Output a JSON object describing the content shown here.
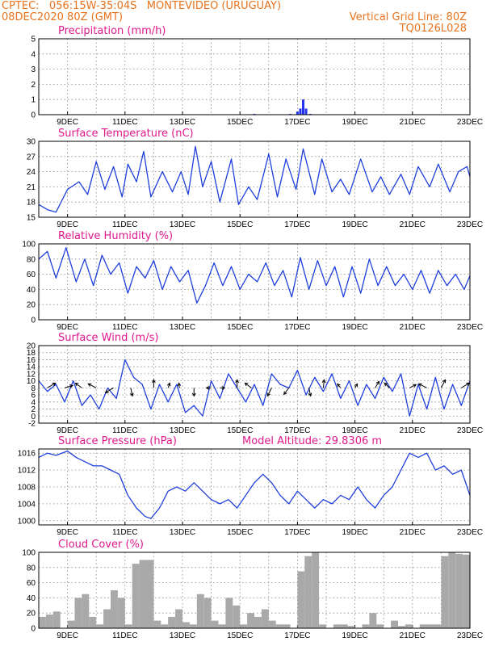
{
  "header": {
    "line1_left": "CPTEC:   056:15W-35:04S   MONTEVIDEO (URUGUAY)",
    "line2_left": "08DEC2020 80Z (GMT)",
    "line2_right": "Vertical Grid Line: 80Z",
    "line3_right": "TQ0126L028"
  },
  "colors": {
    "header": "#e8731e",
    "title": "#e0198c",
    "line": "#1f3fdc",
    "bar": "#2233ee",
    "cloud": "#a9a9a9"
  },
  "chart_data": [
    {
      "id": "precip",
      "type": "bar",
      "title": "Precipitation (mm/h)",
      "ylim": [
        0,
        5
      ],
      "yticks": [
        0,
        1,
        2,
        3,
        4,
        5
      ],
      "xticks": [
        "9DEC",
        "11DEC",
        "13DEC",
        "15DEC",
        "17DEC",
        "19DEC",
        "21DEC",
        "23DEC"
      ],
      "x": [
        15.5,
        16.75,
        17.0,
        17.1,
        17.2,
        17.3,
        17.45
      ],
      "values": [
        0.05,
        0.05,
        0.2,
        0.4,
        1.0,
        0.4,
        0.05
      ]
    },
    {
      "id": "temperature",
      "type": "line",
      "title": "Surface Temperature (nC)",
      "ylim": [
        15,
        30
      ],
      "yticks": [
        15,
        18,
        21,
        24,
        27,
        30
      ],
      "xticks": [
        "9DEC",
        "11DEC",
        "13DEC",
        "15DEC",
        "17DEC",
        "19DEC",
        "21DEC",
        "23DEC"
      ],
      "x": [
        8.0,
        8.3,
        8.6,
        9.0,
        9.4,
        9.7,
        10.0,
        10.3,
        10.6,
        10.9,
        11.1,
        11.4,
        11.65,
        11.9,
        12.3,
        12.65,
        12.95,
        13.2,
        13.45,
        13.7,
        14.0,
        14.3,
        14.7,
        14.95,
        15.3,
        15.6,
        16.0,
        16.3,
        16.6,
        16.95,
        17.2,
        17.6,
        17.85,
        18.2,
        18.5,
        18.8,
        19.2,
        19.6,
        19.9,
        20.2,
        20.6,
        20.9,
        21.2,
        21.6,
        21.9,
        22.3,
        22.6,
        22.9,
        23.0
      ],
      "values": [
        17.5,
        16.5,
        16.0,
        20.5,
        22.0,
        19.5,
        26.0,
        20.5,
        25.0,
        19.0,
        25.5,
        22.0,
        28.0,
        19.0,
        24.0,
        20.0,
        24.0,
        19.5,
        29.0,
        21.0,
        26.0,
        18.0,
        26.5,
        17.5,
        21.0,
        18.5,
        27.5,
        19.0,
        26.5,
        20.5,
        28.5,
        19.5,
        26.5,
        20.0,
        22.5,
        19.5,
        26.5,
        20.0,
        23.0,
        19.5,
        23.5,
        19.5,
        25.0,
        21.0,
        25.5,
        20.0,
        24.0,
        25.0,
        23.0
      ]
    },
    {
      "id": "humidity",
      "type": "line",
      "title": "Relative Humidity (%)",
      "ylim": [
        0,
        100
      ],
      "yticks": [
        0,
        20,
        40,
        60,
        80,
        100
      ],
      "xticks": [
        "9DEC",
        "11DEC",
        "13DEC",
        "15DEC",
        "17DEC",
        "19DEC",
        "21DEC",
        "23DEC"
      ],
      "x": [
        8.0,
        8.3,
        8.6,
        8.95,
        9.3,
        9.6,
        9.9,
        10.2,
        10.5,
        10.8,
        11.1,
        11.4,
        11.7,
        12.0,
        12.3,
        12.6,
        12.9,
        13.2,
        13.5,
        13.8,
        14.1,
        14.4,
        14.7,
        15.0,
        15.3,
        15.6,
        15.9,
        16.2,
        16.5,
        16.8,
        17.1,
        17.4,
        17.7,
        18.0,
        18.3,
        18.6,
        18.9,
        19.2,
        19.5,
        19.8,
        20.1,
        20.4,
        20.7,
        21.0,
        21.3,
        21.6,
        21.9,
        22.2,
        22.5,
        22.8,
        23.0
      ],
      "values": [
        80,
        90,
        55,
        95,
        50,
        80,
        45,
        85,
        60,
        75,
        35,
        70,
        55,
        78,
        40,
        70,
        50,
        65,
        22,
        45,
        75,
        45,
        70,
        40,
        60,
        50,
        75,
        45,
        65,
        30,
        82,
        40,
        78,
        45,
        70,
        30,
        70,
        35,
        80,
        45,
        70,
        45,
        60,
        40,
        65,
        35,
        65,
        45,
        60,
        40,
        58
      ]
    },
    {
      "id": "wind",
      "type": "line",
      "title": "Surface Wind (m/s)",
      "ylim": [
        -2,
        20
      ],
      "yticks": [
        -2,
        0,
        2,
        4,
        6,
        8,
        10,
        12,
        14,
        16,
        18,
        20
      ],
      "xticks": [
        "9DEC",
        "11DEC",
        "13DEC",
        "15DEC",
        "17DEC",
        "19DEC",
        "21DEC",
        "23DEC"
      ],
      "x": [
        8.0,
        8.3,
        8.6,
        8.9,
        9.2,
        9.5,
        9.8,
        10.1,
        10.4,
        10.7,
        11.0,
        11.3,
        11.6,
        11.9,
        12.2,
        12.5,
        12.8,
        13.1,
        13.4,
        13.7,
        14.0,
        14.3,
        14.6,
        14.9,
        15.2,
        15.5,
        15.8,
        16.1,
        16.4,
        16.7,
        17.0,
        17.3,
        17.6,
        17.9,
        18.2,
        18.5,
        18.8,
        19.1,
        19.4,
        19.7,
        20.0,
        20.3,
        20.6,
        20.9,
        21.2,
        21.5,
        21.8,
        22.1,
        22.4,
        22.7,
        23.0
      ],
      "values": [
        10,
        7,
        9,
        4,
        10,
        3,
        6,
        2,
        8,
        5,
        16,
        11,
        9,
        2,
        9,
        4,
        9,
        1,
        3,
        0,
        10,
        5,
        12,
        8,
        4,
        9,
        3,
        12,
        9,
        8,
        13,
        6,
        11,
        7,
        12,
        5,
        10,
        3,
        9,
        5,
        11,
        7,
        12,
        0,
        9,
        2,
        11,
        2,
        9,
        3,
        10
      ],
      "arrows": [
        {
          "x": 8.3,
          "dx": 1,
          "dy": 0.6
        },
        {
          "x": 8.9,
          "dx": 1,
          "dy": 0.3
        },
        {
          "x": 9.5,
          "dx": -0.8,
          "dy": 0.6
        },
        {
          "x": 10.0,
          "dx": -1,
          "dy": 0.5
        },
        {
          "x": 10.6,
          "dx": -1,
          "dy": -0.6
        },
        {
          "x": 11.2,
          "dx": 0.2,
          "dy": -1
        },
        {
          "x": 12.0,
          "dx": 0,
          "dy": 1
        },
        {
          "x": 12.5,
          "dx": 0.2,
          "dy": 0.6
        },
        {
          "x": 12.9,
          "dx": -0.1,
          "dy": 0.6
        },
        {
          "x": 13.4,
          "dx": 0,
          "dy": -1
        },
        {
          "x": 14.0,
          "dx": -0.6,
          "dy": 0
        },
        {
          "x": 14.3,
          "dx": 0.6,
          "dy": 0
        },
        {
          "x": 14.9,
          "dx": 0,
          "dy": 1
        },
        {
          "x": 15.4,
          "dx": -0.8,
          "dy": 0.6
        },
        {
          "x": 16.1,
          "dx": -0.5,
          "dy": -1
        },
        {
          "x": 16.7,
          "dx": -0.6,
          "dy": -0.8
        },
        {
          "x": 17.4,
          "dx": 0.2,
          "dy": -1
        },
        {
          "x": 17.9,
          "dx": 0.1,
          "dy": 1
        },
        {
          "x": 18.5,
          "dx": -0.4,
          "dy": 0.5
        },
        {
          "x": 19.0,
          "dx": 0.3,
          "dy": 0.5
        },
        {
          "x": 19.7,
          "dx": 0.5,
          "dy": 0.8
        },
        {
          "x": 20.2,
          "dx": -0.6,
          "dy": 0.6
        },
        {
          "x": 20.9,
          "dx": 0.8,
          "dy": 0.4
        },
        {
          "x": 21.5,
          "dx": -1,
          "dy": 0.5
        },
        {
          "x": 22.0,
          "dx": 0.5,
          "dy": 1
        },
        {
          "x": 22.7,
          "dx": 1,
          "dy": 0.6
        }
      ]
    },
    {
      "id": "pressure",
      "type": "line",
      "title": "Surface Pressure (hPa)",
      "subtitle": "Model Altitude: 29.8306 m",
      "ylim": [
        999,
        1017
      ],
      "yticks": [
        1000,
        1004,
        1008,
        1012,
        1016
      ],
      "xticks": [
        "9DEC",
        "11DEC",
        "13DEC",
        "15DEC",
        "17DEC",
        "19DEC",
        "21DEC",
        "23DEC"
      ],
      "x": [
        8.0,
        8.3,
        8.6,
        9.0,
        9.3,
        9.6,
        9.9,
        10.2,
        10.5,
        10.8,
        11.1,
        11.4,
        11.7,
        11.9,
        12.2,
        12.5,
        12.8,
        13.1,
        13.4,
        13.7,
        14.0,
        14.3,
        14.6,
        14.9,
        15.2,
        15.5,
        15.8,
        16.1,
        16.4,
        16.7,
        17.0,
        17.3,
        17.6,
        17.9,
        18.2,
        18.5,
        18.8,
        19.1,
        19.4,
        19.7,
        20.0,
        20.3,
        20.6,
        20.9,
        21.2,
        21.5,
        21.8,
        22.1,
        22.4,
        22.7,
        23.0
      ],
      "values": [
        1015,
        1016,
        1015.5,
        1016.5,
        1015,
        1014,
        1013,
        1013,
        1012,
        1011,
        1006,
        1003,
        1001,
        1000.5,
        1003,
        1007,
        1008,
        1007,
        1009,
        1007,
        1005,
        1004,
        1005,
        1003,
        1006,
        1009,
        1011,
        1009,
        1006,
        1004,
        1007,
        1005,
        1003,
        1005,
        1004,
        1006,
        1005,
        1008,
        1005,
        1003,
        1006,
        1008,
        1012,
        1016,
        1015,
        1016,
        1012,
        1013,
        1011,
        1012,
        1006
      ]
    },
    {
      "id": "cloud",
      "type": "bar",
      "title": "Cloud Cover (%)",
      "ylim": [
        0,
        100
      ],
      "yticks": [
        0,
        20,
        40,
        60,
        80,
        100
      ],
      "xticks": [
        "9DEC",
        "11DEC",
        "13DEC",
        "15DEC",
        "17DEC",
        "19DEC",
        "21DEC",
        "23DEC"
      ],
      "x": [
        8.0,
        8.25,
        8.5,
        8.75,
        9.0,
        9.25,
        9.5,
        9.75,
        10.0,
        10.25,
        10.5,
        10.75,
        11.0,
        11.25,
        11.5,
        11.75,
        12.0,
        12.25,
        12.5,
        12.75,
        13.0,
        13.25,
        13.5,
        13.75,
        14.0,
        14.25,
        14.5,
        14.75,
        15.0,
        15.25,
        15.5,
        15.75,
        16.0,
        16.25,
        16.5,
        16.75,
        17.0,
        17.25,
        17.5,
        17.75,
        18.0,
        18.25,
        18.5,
        18.75,
        19.0,
        19.25,
        19.5,
        19.75,
        20.0,
        20.25,
        20.5,
        20.75,
        21.0,
        21.25,
        21.5,
        21.75,
        22.0,
        22.25,
        22.5,
        22.75
      ],
      "values": [
        15,
        18,
        22,
        0,
        10,
        40,
        45,
        15,
        5,
        25,
        50,
        40,
        5,
        85,
        90,
        90,
        10,
        5,
        15,
        25,
        8,
        5,
        45,
        40,
        10,
        5,
        40,
        30,
        5,
        20,
        15,
        25,
        10,
        5,
        5,
        0,
        75,
        95,
        100,
        5,
        0,
        5,
        5,
        3,
        0,
        5,
        20,
        5,
        0,
        10,
        3,
        5,
        0,
        5,
        5,
        5,
        95,
        100,
        98,
        97
      ]
    }
  ]
}
